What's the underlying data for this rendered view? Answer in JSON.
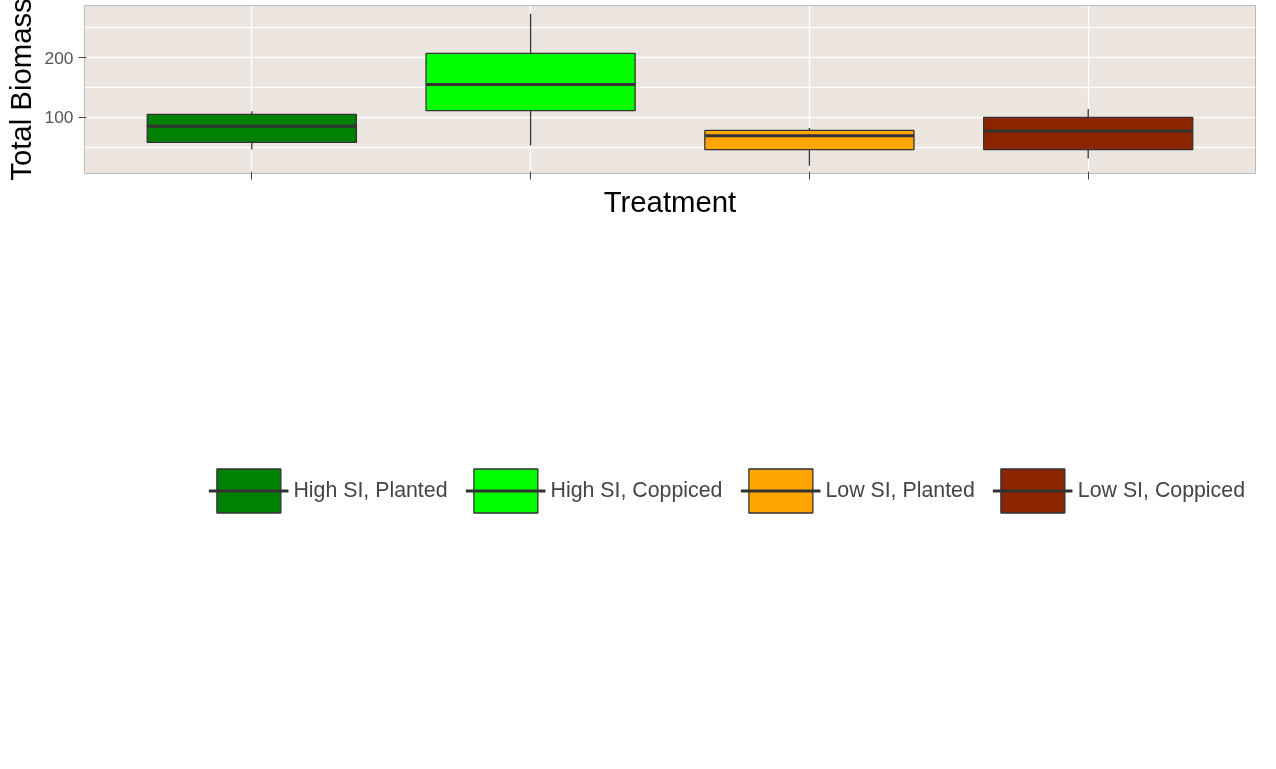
{
  "chart_data": {
    "type": "box",
    "xlabel": "Treatment",
    "ylabel": "Total Biomass",
    "categories": [
      null,
      null,
      null,
      null
    ],
    "series": [
      {
        "name": "High SI, Planted",
        "color": "#008000",
        "boxes": [
          {
            "low": 46,
            "q1": 58,
            "median": 85,
            "q3": 105,
            "high": 110
          },
          null,
          null,
          null
        ]
      },
      {
        "name": "High SI, Coppiced",
        "color": "#00ff00",
        "boxes": [
          null,
          {
            "low": 53,
            "q1": 111,
            "median": 155,
            "q3": 207,
            "high": 273
          },
          null,
          null
        ]
      },
      {
        "name": "Low SI, Planted",
        "color": "#ffa500",
        "boxes": [
          null,
          null,
          {
            "low": 19,
            "q1": 46,
            "median": 69,
            "q3": 78,
            "high": 82
          },
          null
        ]
      },
      {
        "name": "Low SI, Coppiced",
        "color": "#8b2500",
        "boxes": [
          null,
          null,
          null,
          {
            "low": 31,
            "q1": 46,
            "median": 77,
            "q3": 100,
            "high": 114
          }
        ]
      }
    ],
    "ylim": [
      6,
      287
    ],
    "yticks": [
      {
        "value": 50,
        "label": null
      },
      100,
      {
        "value": 150,
        "label": null
      },
      200,
      {
        "value": 250,
        "label": null
      }
    ],
    "grid": true,
    "legend": "bottom",
    "tick_labels": "y"
  }
}
